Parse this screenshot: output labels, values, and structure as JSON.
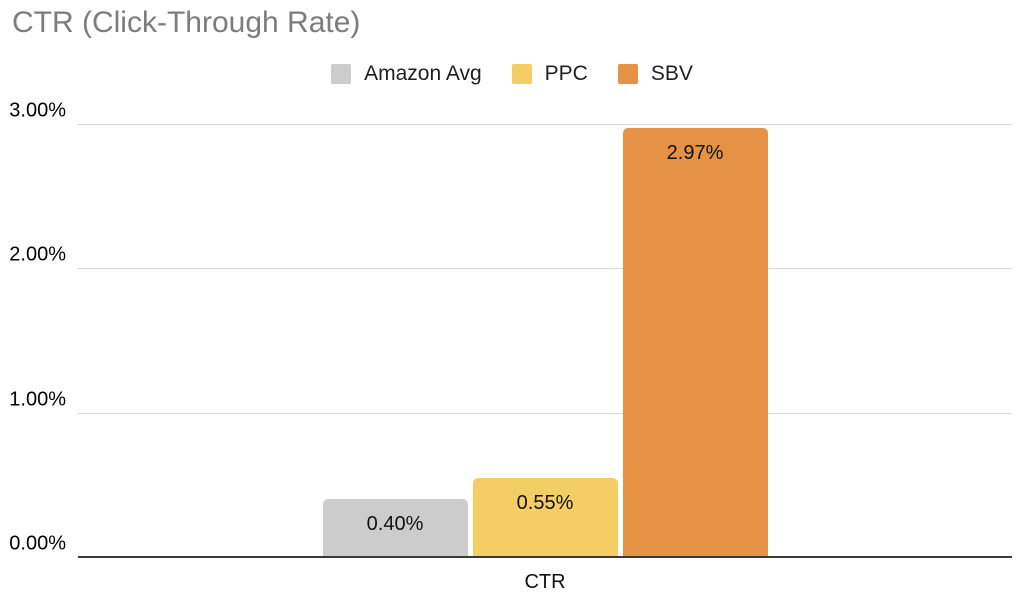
{
  "title": "CTR (Click-Through Rate)",
  "chart_data": {
    "type": "bar",
    "title": "CTR (Click-Through Rate)",
    "categories": [
      "CTR"
    ],
    "series": [
      {
        "name": "Amazon Avg",
        "values": [
          0.4
        ],
        "data_labels": [
          "0.40%"
        ],
        "color": "#cccccc"
      },
      {
        "name": "PPC",
        "values": [
          0.55
        ],
        "data_labels": [
          "0.55%"
        ],
        "color": "#f5cd65"
      },
      {
        "name": "SBV",
        "values": [
          2.97
        ],
        "data_labels": [
          "2.97%"
        ],
        "color": "#e69244"
      }
    ],
    "xlabel": "CTR",
    "ylabel": "",
    "ylim": [
      0,
      3
    ],
    "yticks": [
      {
        "value": 0,
        "label": "0.00%"
      },
      {
        "value": 1,
        "label": "1.00%"
      },
      {
        "value": 2,
        "label": "2.00%"
      },
      {
        "value": 3,
        "label": "3.00%"
      }
    ],
    "grid": true,
    "legend_position": "top"
  },
  "colors": {
    "title_text": "#7c7c7c",
    "gridline": "#d9d9d9",
    "axis_line": "#3a3a3a",
    "label_text": "#111111",
    "background": "#ffffff"
  }
}
